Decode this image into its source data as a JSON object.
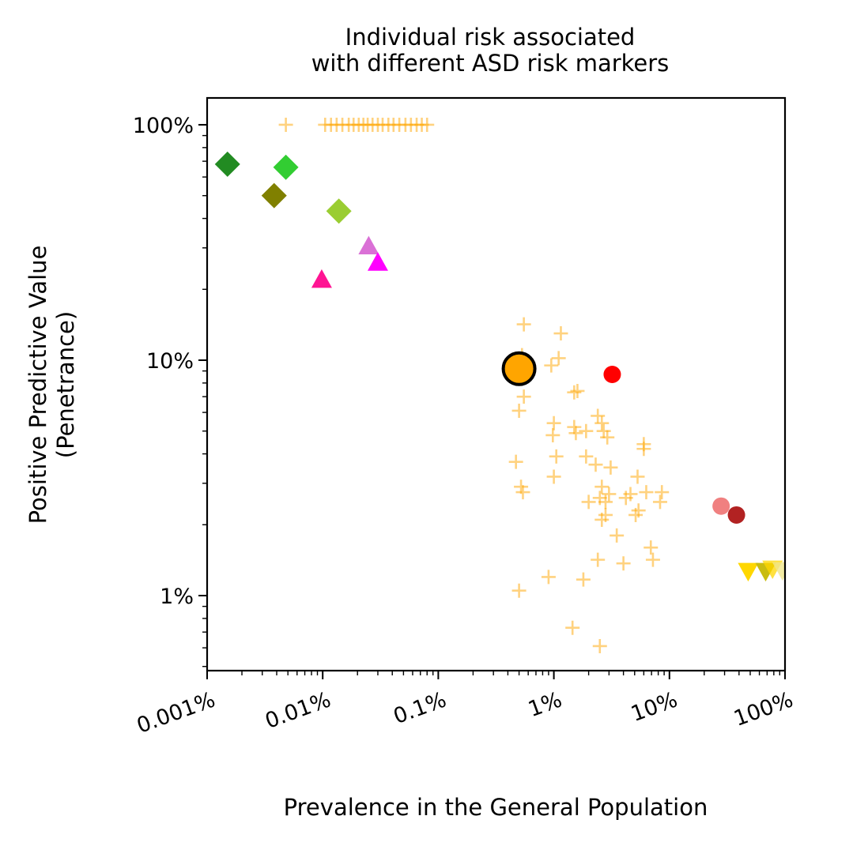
{
  "chart_data": {
    "type": "scatter",
    "title": "Individual risk associated\nwith different ASD risk markers",
    "xlabel": "Prevalence in the General Population",
    "ylabel": "Positive Predictive Value\n(Penetrance)",
    "xscale": "log",
    "yscale": "log",
    "xlim": [
      0.001,
      100
    ],
    "ylim": [
      0.48,
      130
    ],
    "x_ticks": [
      {
        "value": 0.001,
        "label": "0.001%"
      },
      {
        "value": 0.01,
        "label": "0.01%"
      },
      {
        "value": 0.1,
        "label": "0.1%"
      },
      {
        "value": 1,
        "label": "1%"
      },
      {
        "value": 10,
        "label": "10%"
      },
      {
        "value": 100,
        "label": "100%"
      }
    ],
    "y_ticks": [
      {
        "value": 1,
        "label": "1%"
      },
      {
        "value": 10,
        "label": "10%"
      },
      {
        "value": 100,
        "label": "100%"
      }
    ],
    "grid": false,
    "legend": "none",
    "series": [
      {
        "marker": "plus",
        "color": "#ffa500",
        "opacity": 0.5,
        "points": [
          [
            0.0048,
            100
          ],
          [
            0.0105,
            100
          ],
          [
            0.0118,
            100
          ],
          [
            0.0132,
            100
          ],
          [
            0.0148,
            100
          ],
          [
            0.0168,
            100
          ],
          [
            0.0185,
            100
          ],
          [
            0.0205,
            100
          ],
          [
            0.0225,
            100
          ],
          [
            0.0245,
            100
          ],
          [
            0.027,
            100
          ],
          [
            0.03,
            100
          ],
          [
            0.033,
            100
          ],
          [
            0.037,
            100
          ],
          [
            0.041,
            100
          ],
          [
            0.046,
            100
          ],
          [
            0.052,
            100
          ],
          [
            0.058,
            100
          ],
          [
            0.065,
            100
          ],
          [
            0.072,
            100
          ],
          [
            0.08,
            100
          ],
          [
            0.55,
            14.2
          ],
          [
            0.53,
            10.5
          ],
          [
            0.5,
            6.1
          ],
          [
            0.55,
            7.0
          ],
          [
            0.47,
            3.7
          ],
          [
            0.52,
            2.9
          ],
          [
            0.54,
            2.75
          ],
          [
            0.5,
            1.05
          ],
          [
            0.95,
            9.5
          ],
          [
            1.1,
            10.2
          ],
          [
            1.15,
            13.0
          ],
          [
            1.0,
            5.4
          ],
          [
            0.98,
            4.8
          ],
          [
            1.05,
            3.9
          ],
          [
            1.0,
            3.2
          ],
          [
            0.9,
            1.2
          ],
          [
            1.5,
            7.3
          ],
          [
            1.6,
            7.4
          ],
          [
            1.5,
            5.2
          ],
          [
            1.55,
            4.9
          ],
          [
            1.9,
            5.0
          ],
          [
            1.9,
            3.9
          ],
          [
            2.0,
            2.5
          ],
          [
            1.8,
            1.17
          ],
          [
            1.45,
            0.73
          ],
          [
            2.4,
            5.8
          ],
          [
            2.6,
            5.4
          ],
          [
            2.7,
            5.0
          ],
          [
            2.9,
            4.7
          ],
          [
            2.3,
            3.6
          ],
          [
            2.6,
            2.9
          ],
          [
            2.5,
            2.6
          ],
          [
            2.8,
            2.5
          ],
          [
            3.0,
            2.7
          ],
          [
            2.6,
            2.1
          ],
          [
            2.8,
            2.2
          ],
          [
            3.1,
            3.5
          ],
          [
            2.4,
            1.42
          ],
          [
            3.5,
            1.8
          ],
          [
            2.5,
            0.61
          ],
          [
            4.2,
            2.6
          ],
          [
            4.6,
            2.7
          ],
          [
            5.1,
            2.2
          ],
          [
            5.4,
            2.3
          ],
          [
            5.3,
            3.2
          ],
          [
            6.0,
            4.2
          ],
          [
            6.0,
            4.4
          ],
          [
            6.3,
            2.75
          ],
          [
            6.9,
            1.6
          ],
          [
            7.2,
            1.42
          ],
          [
            4.0,
            1.37
          ],
          [
            8.3,
            2.5
          ],
          [
            8.6,
            2.75
          ]
        ]
      },
      {
        "marker": "circle",
        "color": "#ffa500",
        "stroke": "#000000",
        "size": "large",
        "points": [
          [
            0.5,
            9.2
          ]
        ]
      },
      {
        "marker": "circle",
        "color": "#ff0000",
        "points": [
          [
            3.2,
            8.7
          ]
        ]
      },
      {
        "marker": "circle",
        "color": "#f08080",
        "points": [
          [
            28,
            2.4
          ]
        ]
      },
      {
        "marker": "circle",
        "color": "#b22222",
        "points": [
          [
            38,
            2.2
          ]
        ]
      },
      {
        "marker": "diamond",
        "color": "#228b22",
        "points": [
          [
            0.0015,
            68
          ]
        ]
      },
      {
        "marker": "diamond",
        "color": "#32cd32",
        "points": [
          [
            0.0048,
            66
          ]
        ]
      },
      {
        "marker": "diamond",
        "color": "#808000",
        "points": [
          [
            0.0038,
            50
          ]
        ]
      },
      {
        "marker": "diamond",
        "color": "#9acd32",
        "points": [
          [
            0.0138,
            43
          ]
        ]
      },
      {
        "marker": "triangle-up",
        "color": "#da70d6",
        "points": [
          [
            0.025,
            30.5
          ]
        ]
      },
      {
        "marker": "triangle-up",
        "color": "#ff00ff",
        "points": [
          [
            0.03,
            26
          ]
        ]
      },
      {
        "marker": "triangle-up",
        "color": "#ff1493",
        "points": [
          [
            0.0098,
            22
          ]
        ]
      },
      {
        "marker": "triangle-down",
        "color": "#ffd700",
        "points": [
          [
            48,
            1.27
          ]
        ]
      },
      {
        "marker": "triangle-down",
        "color": "#c9bc10",
        "points": [
          [
            68,
            1.27
          ]
        ]
      },
      {
        "marker": "triangle-down",
        "color": "#ffd700",
        "opacity": 0.75,
        "points": [
          [
            78,
            1.3
          ]
        ]
      },
      {
        "marker": "triangle-down",
        "color": "#f0e68c",
        "opacity": 0.8,
        "points": [
          [
            95,
            1.28
          ]
        ]
      }
    ]
  }
}
